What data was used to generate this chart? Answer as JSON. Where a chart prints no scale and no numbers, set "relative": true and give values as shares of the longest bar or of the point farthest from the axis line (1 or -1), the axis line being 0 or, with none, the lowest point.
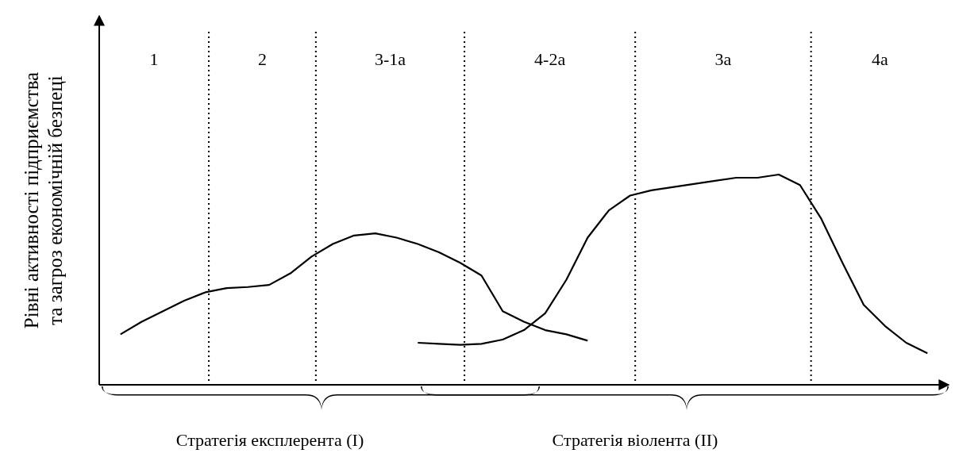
{
  "chart_data": {
    "type": "line",
    "relative": true,
    "ylabel": "Рівні активності підприємства\nта загроз економічній безпеці",
    "tick_labels": false,
    "line_style": "solid",
    "categories": [
      null,
      null,
      null,
      null,
      null,
      null,
      null,
      null,
      null,
      null,
      null,
      null,
      null,
      null,
      null,
      null,
      null,
      null,
      null,
      null,
      null,
      null,
      null,
      null,
      null,
      null,
      null,
      null,
      null,
      null,
      null,
      null,
      null,
      null,
      null,
      null,
      null,
      null,
      null,
      null,
      null
    ],
    "series": [
      {
        "color": "#000000",
        "values": [
          null,
          0.24,
          0.3,
          0.35,
          0.4,
          0.44,
          0.46,
          0.465,
          0.475,
          0.53,
          0.61,
          0.67,
          0.71,
          0.72,
          0.7,
          0.67,
          0.63,
          0.58,
          0.52,
          0.35,
          0.3,
          0.26,
          0.24,
          0.21,
          null,
          null,
          null,
          null,
          null,
          null,
          null,
          null,
          null,
          null,
          null,
          null,
          null,
          null,
          null,
          null,
          null
        ]
      },
      {
        "color": "#000000",
        "values": [
          null,
          null,
          null,
          null,
          null,
          null,
          null,
          null,
          null,
          null,
          null,
          null,
          null,
          null,
          null,
          0.2,
          0.195,
          0.19,
          0.195,
          0.215,
          0.26,
          0.34,
          0.5,
          0.7,
          0.83,
          0.9,
          0.925,
          0.94,
          0.955,
          0.97,
          0.985,
          0.985,
          1,
          0.95,
          0.79,
          0.58,
          0.38,
          0.28,
          0.2,
          0.15,
          null
        ]
      }
    ],
    "annotations": [
      "1",
      "2",
      "3-1а",
      "4-2а",
      "3а",
      "4а",
      "Стратегія експлерента (I)",
      "Стратегія віолента (II)"
    ]
  }
}
